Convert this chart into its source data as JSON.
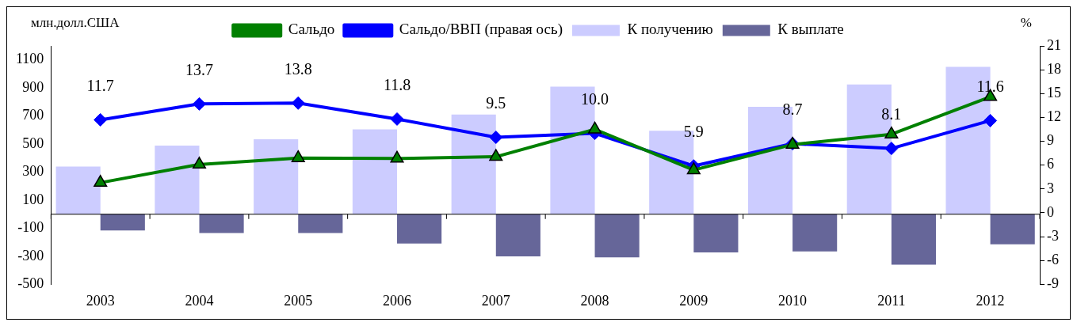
{
  "chart_data": {
    "type": "bar",
    "ylabel": "млн.долл.США",
    "y2label": "%",
    "categories": [
      "2003",
      "2004",
      "2005",
      "2006",
      "2007",
      "2008",
      "2009",
      "2010",
      "2011",
      "2012"
    ],
    "series": [
      {
        "name": "К получению",
        "color": "#ccccff",
        "values": [
          340,
          490,
          535,
          605,
          710,
          910,
          595,
          765,
          925,
          1050
        ]
      },
      {
        "name": "К выплате",
        "color": "#666699",
        "values": [
          -116,
          -134,
          -134,
          -208,
          -300,
          -307,
          -272,
          -265,
          -359,
          -215
        ]
      },
      {
        "name": "Сальдо",
        "type": "line",
        "color": "#008000",
        "marker": "triangle",
        "values": [
          225,
          355,
          401,
          397,
          410,
          605,
          315,
          497,
          570,
          837
        ]
      },
      {
        "name": "Сальдо/ВВП (правая ось)",
        "type": "line",
        "axis": "y2",
        "color": "#0000ff",
        "marker": "diamond",
        "values": [
          11.7,
          13.7,
          13.8,
          11.8,
          9.5,
          10.0,
          5.9,
          8.7,
          8.1,
          11.6
        ],
        "value_labels": [
          "11.7",
          "13.7",
          "13.8",
          "11.8",
          "9.5",
          "10.0",
          "5.9",
          "8.7",
          "8.1",
          "11.6"
        ]
      }
    ],
    "ylim": [
      -500,
      1200
    ],
    "yticks": [
      -500,
      -300,
      -100,
      100,
      300,
      500,
      700,
      900,
      1100
    ],
    "y2lim": [
      -9,
      21
    ],
    "y2ticks": [
      -9,
      -6,
      -3,
      0,
      3,
      6,
      9,
      12,
      15,
      18,
      21
    ],
    "grid": false,
    "legend": "top"
  }
}
